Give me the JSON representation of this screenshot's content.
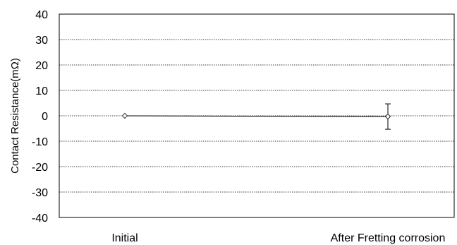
{
  "chart_data": {
    "type": "line",
    "title": "",
    "xlabel": "",
    "ylabel": "Contact Resistance(mΩ)",
    "categories": [
      "Initial",
      "After Fretting corrosion"
    ],
    "series": [
      {
        "values": [
          0,
          -0.3
        ],
        "error": [
          0,
          5.0
        ],
        "color": "#000000"
      }
    ],
    "ylim": [
      -40,
      40
    ],
    "yticks": [
      40,
      30,
      20,
      10,
      0,
      -10,
      -20,
      -30,
      -40
    ],
    "grid": true,
    "marker": "diamond"
  }
}
